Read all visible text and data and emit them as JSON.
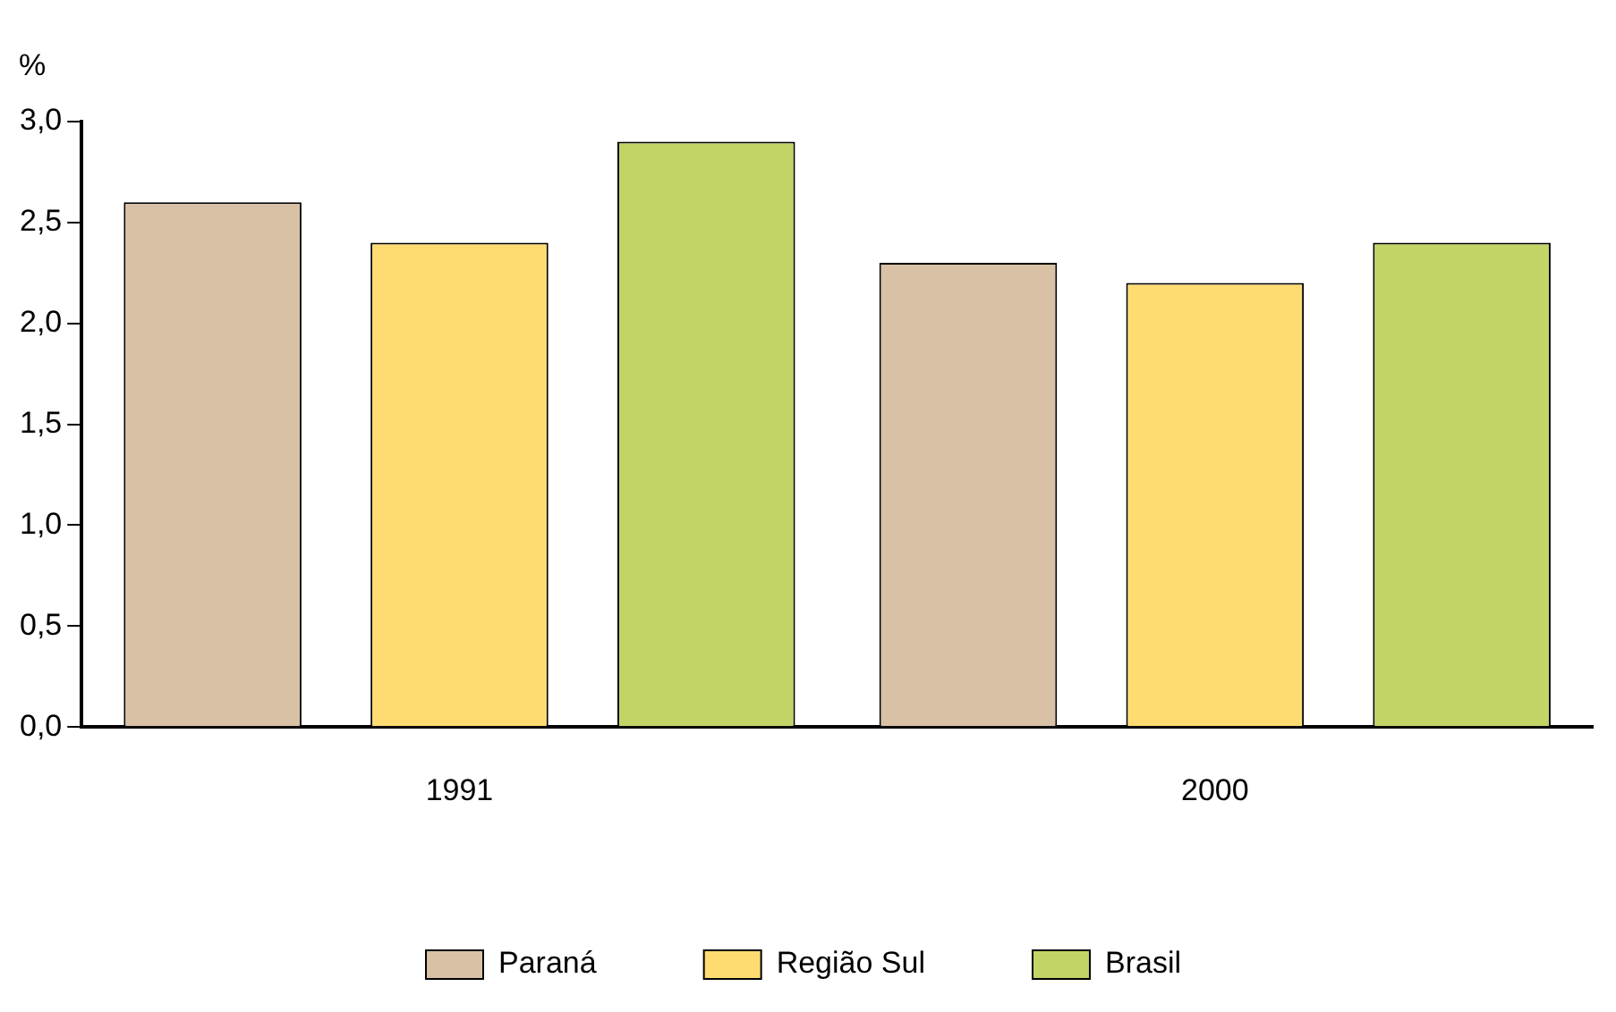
{
  "chart_data": {
    "type": "bar",
    "ylabel": "%",
    "categories": [
      "1991",
      "2000"
    ],
    "series": [
      {
        "name": "Paraná",
        "color": "#d9c1a6",
        "values": [
          2.6,
          2.3
        ]
      },
      {
        "name": "Região Sul",
        "color": "#fedc72",
        "values": [
          2.4,
          2.2
        ]
      },
      {
        "name": "Brasil",
        "color": "#c3d467",
        "values": [
          2.9,
          2.4
        ]
      }
    ],
    "ylim": [
      0,
      3
    ],
    "yticks": [
      {
        "value": 0,
        "label": "0,0"
      },
      {
        "value": 0.5,
        "label": "0,5"
      },
      {
        "value": 1,
        "label": "1,0"
      },
      {
        "value": 1.5,
        "label": "1,5"
      },
      {
        "value": 2,
        "label": "2,0"
      },
      {
        "value": 2.5,
        "label": "2,5"
      },
      {
        "value": 3,
        "label": "3,0"
      }
    ],
    "grid": false,
    "legend": "bottom"
  }
}
